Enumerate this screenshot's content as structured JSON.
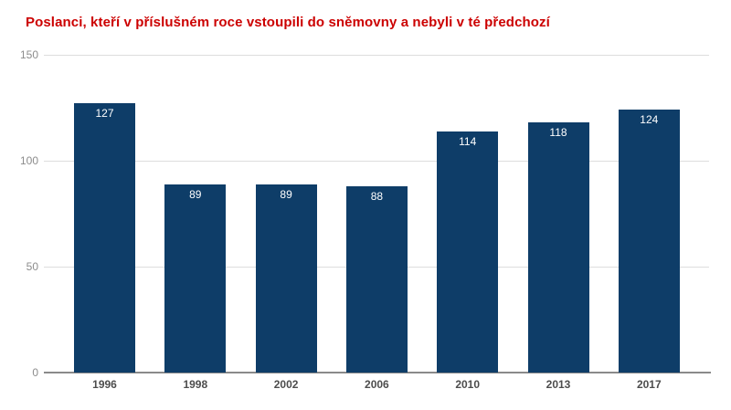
{
  "title": "Poslanci, kteří v příslušném roce vstoupili do sněmovny a nebyli v té předchozí",
  "colors": {
    "background": "#ffffff",
    "title": "#cc0000",
    "bar": "#0e3d68",
    "value_label": "#ffffff",
    "gridline": "#dddddd",
    "axis_line": "#8a8a8a",
    "y_tick_label": "#8c8c8c",
    "x_tick_label": "#4d4d4d"
  },
  "chart_data": {
    "type": "bar",
    "title": "Poslanci, kteří v příslušném roce vstoupili do sněmovny a nebyli v té předchozí",
    "categories": [
      "1996",
      "1998",
      "2002",
      "2006",
      "2010",
      "2013",
      "2017"
    ],
    "values": [
      127,
      89,
      89,
      88,
      114,
      118,
      124
    ],
    "xlabel": "",
    "ylabel": "",
    "ylim": [
      0,
      150
    ],
    "yticks": [
      0,
      50,
      100,
      150
    ],
    "grid": true,
    "legend": "none",
    "value_labels": "inside-top-white"
  }
}
